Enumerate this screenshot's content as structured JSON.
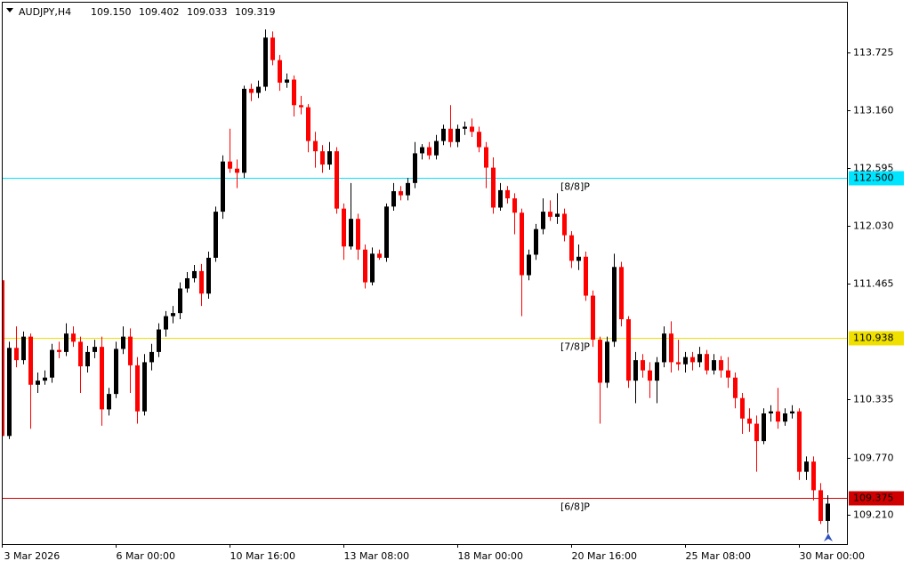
{
  "chart_data": {
    "type": "candlestick",
    "title": "AUDJPY,H4",
    "ohlc_labels": [
      "109.150",
      "109.402",
      "109.033",
      "109.319"
    ],
    "up_color": "#000000",
    "down_color": "#ff0000",
    "ylim": [
      108.924,
      114.211
    ],
    "yticks": [
      113.725,
      {
        "value": 113.16,
        "label": "113.160"
      },
      112.595,
      {
        "value": 112.03,
        "label": "112.030"
      },
      111.465,
      110.335,
      {
        "value": 109.77,
        "label": "109.770"
      },
      {
        "value": 109.21,
        "label": "109.210"
      }
    ],
    "levels": [
      {
        "value": 112.5,
        "label": "112.500",
        "name": "[8/8]P",
        "color": "#00e5ff"
      },
      {
        "value": 110.938,
        "label": "110.938",
        "name": "[7/8]P",
        "color": "#f0e000"
      },
      {
        "value": 109.375,
        "label": "109.375",
        "name": "[6/8]P",
        "color": "#d00000"
      }
    ],
    "categories": [
      "3 Mar 2026",
      null,
      null,
      null,
      null,
      null,
      null,
      null,
      null,
      null,
      null,
      null,
      null,
      null,
      null,
      null,
      "6 Mar 00:00",
      null,
      null,
      null,
      null,
      null,
      null,
      null,
      null,
      null,
      null,
      null,
      null,
      null,
      null,
      null,
      "10 Mar 16:00",
      null,
      null,
      null,
      null,
      null,
      null,
      null,
      null,
      null,
      null,
      null,
      null,
      null,
      null,
      null,
      "13 Mar 08:00",
      null,
      null,
      null,
      null,
      null,
      null,
      null,
      null,
      null,
      null,
      null,
      null,
      null,
      null,
      null,
      "18 Mar 00:00",
      null,
      null,
      null,
      null,
      null,
      null,
      null,
      null,
      null,
      null,
      null,
      null,
      null,
      null,
      null,
      "20 Mar 16:00",
      null,
      null,
      null,
      null,
      null,
      null,
      null,
      null,
      null,
      null,
      null,
      null,
      null,
      null,
      null,
      "25 Mar 08:00",
      null,
      null,
      null,
      null,
      null,
      null,
      null,
      null,
      null,
      null,
      null,
      null,
      null,
      null,
      null,
      "30 Mar 00:00",
      null,
      null,
      null,
      null
    ],
    "candles": [
      [
        111.5,
        111.62,
        109.96,
        109.98
      ],
      [
        109.98,
        110.9,
        109.95,
        110.84
      ],
      [
        110.84,
        111.05,
        110.65,
        110.72
      ],
      [
        110.72,
        111.0,
        110.68,
        110.95
      ],
      [
        110.95,
        110.98,
        110.05,
        110.48
      ],
      [
        110.48,
        110.6,
        110.4,
        110.52
      ],
      [
        110.52,
        110.62,
        110.48,
        110.55
      ],
      [
        110.55,
        110.88,
        110.5,
        110.82
      ],
      [
        110.82,
        110.9,
        110.74,
        110.8
      ],
      [
        110.8,
        111.08,
        110.76,
        110.98
      ],
      [
        110.98,
        111.05,
        110.85,
        110.9
      ],
      [
        110.9,
        110.95,
        110.4,
        110.66
      ],
      [
        110.66,
        110.86,
        110.6,
        110.8
      ],
      [
        110.8,
        110.92,
        110.74,
        110.85
      ],
      [
        110.85,
        110.95,
        110.08,
        110.24
      ],
      [
        110.24,
        110.45,
        110.18,
        110.39
      ],
      [
        110.39,
        110.9,
        110.35,
        110.83
      ],
      [
        110.83,
        111.05,
        110.78,
        110.95
      ],
      [
        110.95,
        111.03,
        110.4,
        110.67
      ],
      [
        110.67,
        110.75,
        110.1,
        110.22
      ],
      [
        110.22,
        110.78,
        110.18,
        110.7
      ],
      [
        110.7,
        110.88,
        110.62,
        110.8
      ],
      [
        110.8,
        111.08,
        110.75,
        111.02
      ],
      [
        111.02,
        111.2,
        110.95,
        111.15
      ],
      [
        111.15,
        111.25,
        111.08,
        111.18
      ],
      [
        111.18,
        111.48,
        111.12,
        111.42
      ],
      [
        111.42,
        111.58,
        111.38,
        111.52
      ],
      [
        111.52,
        111.65,
        111.48,
        111.59
      ],
      [
        111.59,
        111.66,
        111.25,
        111.37
      ],
      [
        111.37,
        111.78,
        111.32,
        111.72
      ],
      [
        111.72,
        112.22,
        111.68,
        112.17
      ],
      [
        112.17,
        112.72,
        112.1,
        112.66
      ],
      [
        112.66,
        112.98,
        112.55,
        112.59
      ],
      [
        112.59,
        112.68,
        112.4,
        112.55
      ],
      [
        112.55,
        113.4,
        112.5,
        113.37
      ],
      [
        113.37,
        113.42,
        113.25,
        113.33
      ],
      [
        113.33,
        113.45,
        113.28,
        113.39
      ],
      [
        113.39,
        113.95,
        113.35,
        113.87
      ],
      [
        113.87,
        113.93,
        113.6,
        113.65
      ],
      [
        113.65,
        113.7,
        113.35,
        113.43
      ],
      [
        113.43,
        113.52,
        113.38,
        113.46
      ],
      [
        113.46,
        113.5,
        113.1,
        113.21
      ],
      [
        113.21,
        113.3,
        113.12,
        113.19
      ],
      [
        113.19,
        113.22,
        112.75,
        112.86
      ],
      [
        112.86,
        112.95,
        112.6,
        112.76
      ],
      [
        112.76,
        112.82,
        112.55,
        112.63
      ],
      [
        112.63,
        112.85,
        112.58,
        112.76
      ],
      [
        112.76,
        112.8,
        112.15,
        112.2
      ],
      [
        112.2,
        112.25,
        111.7,
        111.83
      ],
      [
        111.83,
        112.45,
        111.8,
        112.1
      ],
      [
        112.1,
        112.15,
        111.7,
        111.8
      ],
      [
        111.8,
        111.85,
        111.42,
        111.48
      ],
      [
        111.48,
        111.82,
        111.45,
        111.76
      ],
      [
        111.76,
        111.8,
        111.7,
        111.72
      ],
      [
        111.72,
        112.25,
        111.68,
        112.22
      ],
      [
        112.22,
        112.45,
        112.18,
        112.37
      ],
      [
        112.37,
        112.42,
        112.28,
        112.33
      ],
      [
        112.33,
        112.5,
        112.28,
        112.45
      ],
      [
        112.45,
        112.85,
        112.4,
        112.74
      ],
      [
        112.74,
        112.83,
        112.68,
        112.8
      ],
      [
        112.8,
        112.85,
        112.68,
        112.72
      ],
      [
        112.72,
        112.92,
        112.68,
        112.86
      ],
      [
        112.86,
        113.02,
        112.82,
        112.98
      ],
      [
        112.98,
        113.21,
        112.8,
        112.85
      ],
      [
        112.85,
        113.02,
        112.8,
        112.98
      ],
      [
        112.98,
        113.05,
        112.92,
        113.0
      ],
      [
        113.0,
        113.08,
        112.9,
        112.95
      ],
      [
        112.95,
        113.0,
        112.75,
        112.8
      ],
      [
        112.8,
        112.85,
        112.4,
        112.6
      ],
      [
        112.6,
        112.7,
        112.15,
        112.21
      ],
      [
        112.21,
        112.45,
        112.18,
        112.38
      ],
      [
        112.38,
        112.42,
        112.25,
        112.3
      ],
      [
        112.3,
        112.35,
        111.95,
        112.16
      ],
      [
        112.16,
        112.2,
        111.15,
        111.55
      ],
      [
        111.55,
        111.8,
        111.5,
        111.75
      ],
      [
        111.75,
        112.05,
        111.7,
        112.0
      ],
      [
        112.0,
        112.3,
        111.95,
        112.17
      ],
      [
        112.17,
        112.28,
        112.08,
        112.12
      ],
      [
        112.12,
        112.35,
        112.05,
        112.15
      ],
      [
        112.15,
        112.2,
        111.88,
        111.94
      ],
      [
        111.94,
        111.98,
        111.62,
        111.69
      ],
      [
        111.69,
        111.85,
        111.6,
        111.73
      ],
      [
        111.73,
        111.78,
        111.3,
        111.35
      ],
      [
        111.35,
        111.4,
        110.85,
        110.92
      ],
      [
        110.92,
        110.95,
        110.1,
        110.5
      ],
      [
        110.5,
        110.95,
        110.45,
        110.9
      ],
      [
        110.9,
        111.76,
        110.85,
        111.63
      ],
      [
        111.63,
        111.68,
        111.05,
        111.12
      ],
      [
        111.12,
        111.15,
        110.45,
        110.52
      ],
      [
        110.52,
        110.8,
        110.3,
        110.72
      ],
      [
        110.72,
        110.78,
        110.55,
        110.62
      ],
      [
        110.62,
        110.7,
        110.35,
        110.52
      ],
      [
        110.52,
        110.75,
        110.3,
        110.7
      ],
      [
        110.7,
        111.05,
        110.65,
        110.98
      ],
      [
        110.98,
        111.1,
        110.6,
        110.7
      ],
      [
        110.7,
        110.92,
        110.62,
        110.68
      ],
      [
        110.68,
        110.8,
        110.6,
        110.75
      ],
      [
        110.75,
        110.8,
        110.62,
        110.7
      ],
      [
        110.7,
        110.85,
        110.65,
        110.78
      ],
      [
        110.78,
        110.82,
        110.58,
        110.62
      ],
      [
        110.62,
        110.78,
        110.58,
        110.72
      ],
      [
        110.72,
        110.76,
        110.55,
        110.62
      ],
      [
        110.62,
        110.75,
        110.45,
        110.55
      ],
      [
        110.55,
        110.6,
        110.25,
        110.35
      ],
      [
        110.35,
        110.4,
        110.0,
        110.15
      ],
      [
        110.15,
        110.25,
        110.02,
        110.1
      ],
      [
        110.1,
        110.18,
        109.63,
        109.93
      ],
      [
        109.93,
        110.25,
        109.9,
        110.2
      ],
      [
        110.2,
        110.28,
        110.12,
        110.22
      ],
      [
        110.22,
        110.45,
        110.05,
        110.12
      ],
      [
        110.12,
        110.25,
        110.08,
        110.2
      ],
      [
        110.2,
        110.28,
        110.15,
        110.22
      ],
      [
        110.22,
        110.25,
        109.55,
        109.63
      ],
      [
        109.63,
        109.78,
        109.55,
        109.73
      ],
      [
        109.73,
        109.78,
        109.35,
        109.45
      ],
      [
        109.45,
        109.52,
        109.12,
        109.15
      ],
      [
        109.15,
        109.402,
        109.033,
        109.319
      ]
    ]
  }
}
